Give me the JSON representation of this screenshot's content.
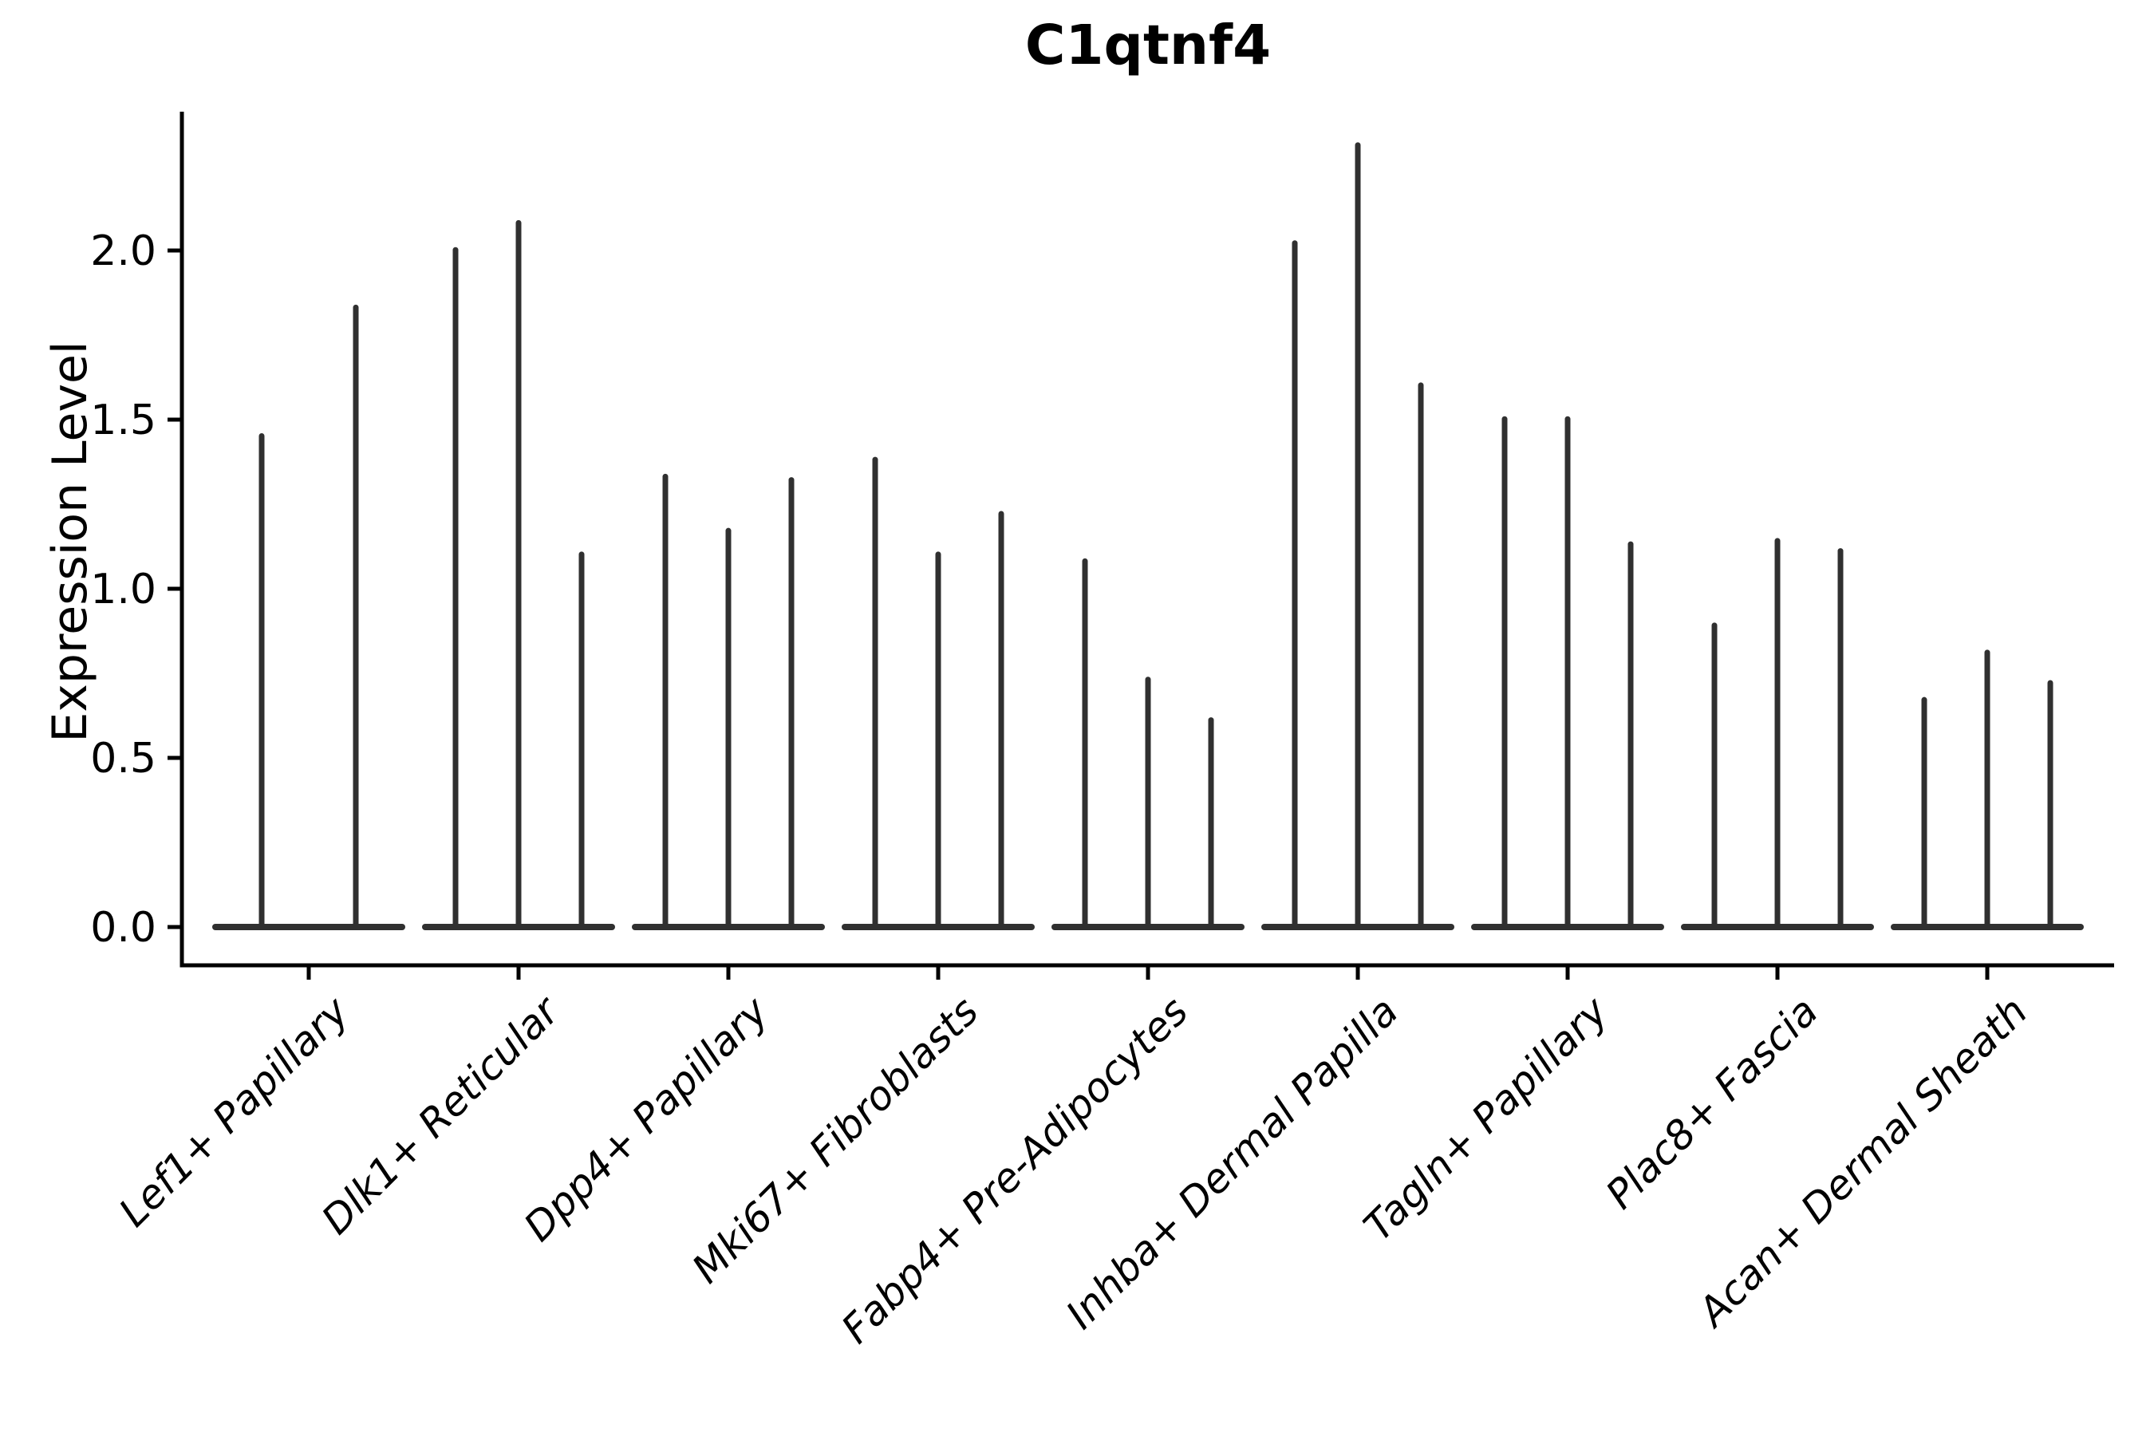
{
  "chart_data": {
    "type": "violin",
    "title": "C1qtnf4",
    "xlabel": "",
    "ylabel": "Expression Level",
    "yticks": [
      0.0,
      0.5,
      1.0,
      1.5,
      2.0
    ],
    "ytick_labels": [
      "0.0",
      "0.5",
      "1.0",
      "1.5",
      "2.0"
    ],
    "ylim": [
      -0.11,
      2.41
    ],
    "legend": "none",
    "grid": false,
    "description": "Single-cell violin plot of gene expression; each category holds narrow violins whose density mass sits at 0 with a thin spike rising to the listed maximum expression value.",
    "categories": [
      "Lef1+ Papillary",
      "Dlk1+ Reticular",
      "Dpp4+ Papillary",
      "Mki67+ Fibroblasts",
      "Fabp4+ Pre-Adipocytes",
      "Inhba+ Dermal Papilla",
      "Tagln+ Papillary",
      "Plac8+ Fascia",
      "Acan+ Dermal Sheath"
    ],
    "groups": [
      {
        "label": "Lef1+ Papillary",
        "violin_max_values": [
          1.46,
          1.84
        ]
      },
      {
        "label": "Dlk1+ Reticular",
        "violin_max_values": [
          2.01,
          2.09,
          1.11
        ]
      },
      {
        "label": "Dpp4+ Papillary",
        "violin_max_values": [
          1.34,
          1.18,
          1.33
        ]
      },
      {
        "label": "Mki67+ Fibroblasts",
        "violin_max_values": [
          1.39,
          1.11,
          1.23
        ]
      },
      {
        "label": "Fabp4+ Pre-Adipocytes",
        "violin_max_values": [
          1.09,
          0.74,
          0.62
        ]
      },
      {
        "label": "Inhba+ Dermal Papilla",
        "violin_max_values": [
          2.03,
          2.32,
          1.61
        ]
      },
      {
        "label": "Tagln+ Papillary",
        "violin_max_values": [
          1.51,
          1.51,
          1.14
        ]
      },
      {
        "label": "Plac8+ Fascia",
        "violin_max_values": [
          0.9,
          1.15,
          1.12
        ]
      },
      {
        "label": "Acan+ Dermal Sheath",
        "violin_max_values": [
          0.68,
          0.82,
          0.73
        ]
      }
    ],
    "colors": {
      "violin": "#303030",
      "axis": "#000000",
      "text": "#000000",
      "background": "#ffffff"
    }
  }
}
